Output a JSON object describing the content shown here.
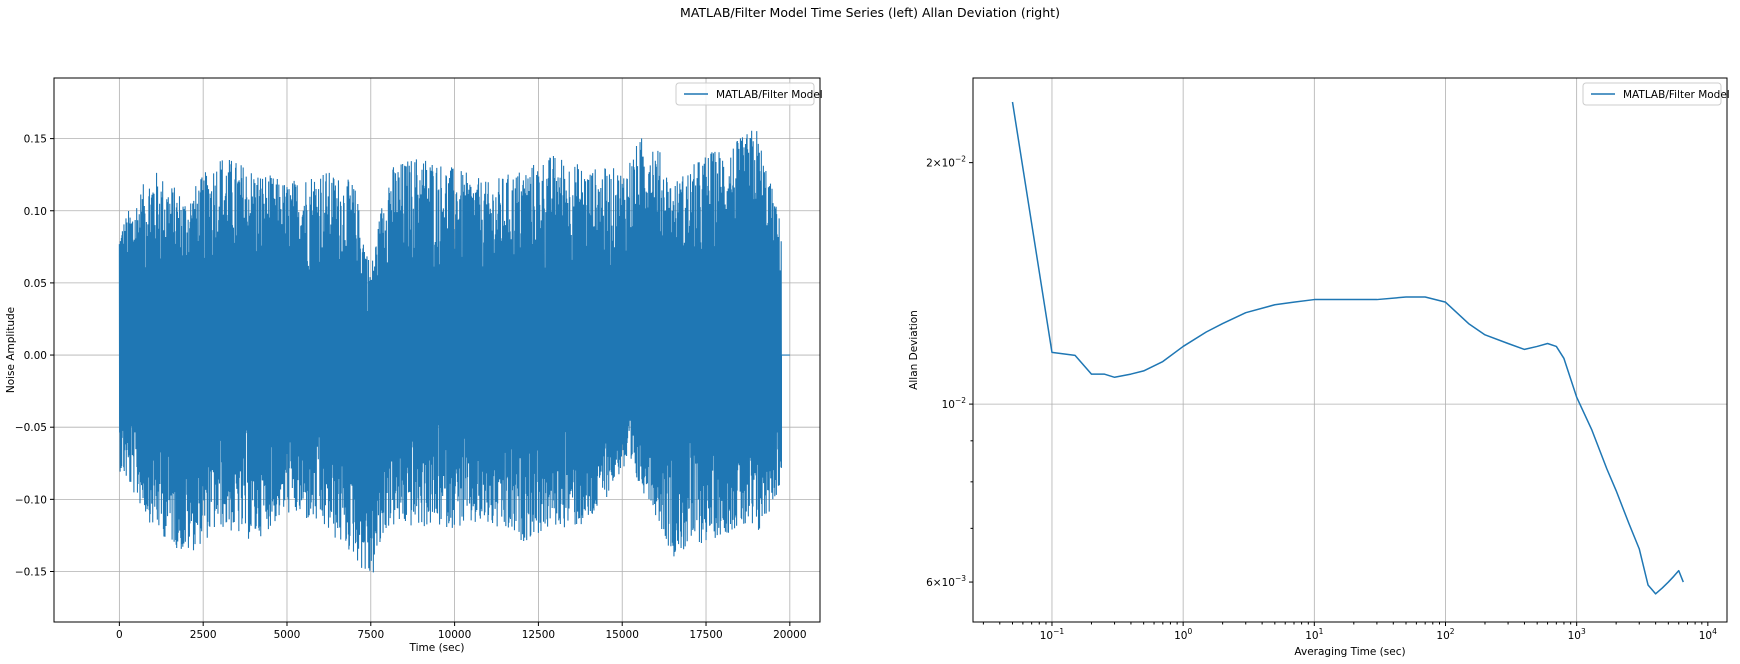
{
  "figure": {
    "title": "MATLAB/Filter Model Time Series (left) Allan Deviation (right)"
  },
  "colors": {
    "series": "#1f77b4",
    "grid": "#b0b0b0",
    "axis": "#000000"
  },
  "chart_data": [
    {
      "type": "line",
      "xlabel": "Time (sec)",
      "ylabel": "Noise Amplitude",
      "xlim": [
        -1950,
        20900
      ],
      "ylim": [
        -0.185,
        0.192
      ],
      "x_ticks": [
        0,
        2500,
        5000,
        7500,
        10000,
        12500,
        15000,
        17500,
        20000
      ],
      "x_tick_labels": [
        "0",
        "2500",
        "5000",
        "7500",
        "10000",
        "12500",
        "15000",
        "17500",
        "20000"
      ],
      "y_ticks": [
        -0.15,
        -0.1,
        -0.05,
        0.0,
        0.05,
        0.1,
        0.15
      ],
      "y_tick_labels": [
        "−0.15",
        "−0.10",
        "−0.05",
        "0.00",
        "0.05",
        "0.10",
        "0.15"
      ],
      "grid": true,
      "legend_position": "top-right",
      "series": [
        {
          "name": "MATLAB/Filter Model",
          "noise_span": [
            0,
            19750
          ],
          "tail_x": [
            19750,
            20000
          ],
          "tail_y": [
            0,
            0
          ],
          "envelope_x": [
            0,
            1000,
            2000,
            3000,
            4000,
            5000,
            6000,
            7000,
            7500,
            8000,
            9000,
            10000,
            11000,
            12000,
            13000,
            14000,
            15000,
            15800,
            16500,
            17500,
            18500,
            19000,
            19750
          ],
          "envelope_upper": [
            0.09,
            0.13,
            0.11,
            0.14,
            0.13,
            0.12,
            0.13,
            0.12,
            0.06,
            0.13,
            0.14,
            0.13,
            0.12,
            0.13,
            0.14,
            0.13,
            0.13,
            0.16,
            0.12,
            0.14,
            0.15,
            0.16,
            0.09
          ],
          "envelope_lower": [
            -0.08,
            -0.12,
            -0.14,
            -0.12,
            -0.13,
            -0.11,
            -0.12,
            -0.14,
            -0.16,
            -0.12,
            -0.12,
            -0.12,
            -0.12,
            -0.13,
            -0.12,
            -0.12,
            -0.08,
            -0.1,
            -0.14,
            -0.13,
            -0.12,
            -0.13,
            -0.09
          ]
        }
      ]
    },
    {
      "type": "line",
      "xlabel": "Averaging Time (sec)",
      "ylabel": "Allan Deviation",
      "xscale": "log",
      "yscale": "log",
      "xlim": [
        0.025,
        14000
      ],
      "ylim": [
        0.00535,
        0.0255
      ],
      "x_ticks": [
        0.1,
        1,
        10,
        100,
        1000,
        10000
      ],
      "x_tick_labels": [
        {
          "base": "10",
          "exp": "−1"
        },
        {
          "base": "10",
          "exp": "0"
        },
        {
          "base": "10",
          "exp": "1"
        },
        {
          "base": "10",
          "exp": "2"
        },
        {
          "base": "10",
          "exp": "3"
        },
        {
          "base": "10",
          "exp": "4"
        }
      ],
      "y_ticks": [
        0.006,
        0.01,
        0.02
      ],
      "y_tick_labels": [
        {
          "base": "6×10",
          "exp": "−3"
        },
        {
          "base": "10",
          "exp": "−2"
        },
        {
          "base": "2×10",
          "exp": "−2"
        }
      ],
      "grid": true,
      "legend_position": "top-right",
      "series": [
        {
          "name": "MATLAB/Filter Model",
          "x": [
            0.05,
            0.1,
            0.15,
            0.2,
            0.25,
            0.3,
            0.4,
            0.5,
            0.7,
            1,
            1.5,
            2,
            3,
            5,
            7,
            10,
            15,
            20,
            30,
            50,
            70,
            100,
            150,
            200,
            300,
            400,
            500,
            600,
            700,
            800,
            1000,
            1300,
            1700,
            2000,
            2500,
            3000,
            3500,
            4000,
            4500,
            5000,
            5500,
            6000,
            6500
          ],
          "y": [
            0.0238,
            0.0116,
            0.0115,
            0.0109,
            0.0109,
            0.0108,
            0.0109,
            0.011,
            0.0113,
            0.0118,
            0.0123,
            0.0126,
            0.013,
            0.0133,
            0.0134,
            0.0135,
            0.0135,
            0.0135,
            0.0135,
            0.0136,
            0.0136,
            0.0134,
            0.0126,
            0.0122,
            0.0119,
            0.0117,
            0.0118,
            0.0119,
            0.0118,
            0.0114,
            0.0102,
            0.0093,
            0.0083,
            0.0078,
            0.0071,
            0.0066,
            0.00595,
            0.0058,
            0.0059,
            0.006,
            0.0061,
            0.0062,
            0.006
          ]
        }
      ]
    }
  ]
}
